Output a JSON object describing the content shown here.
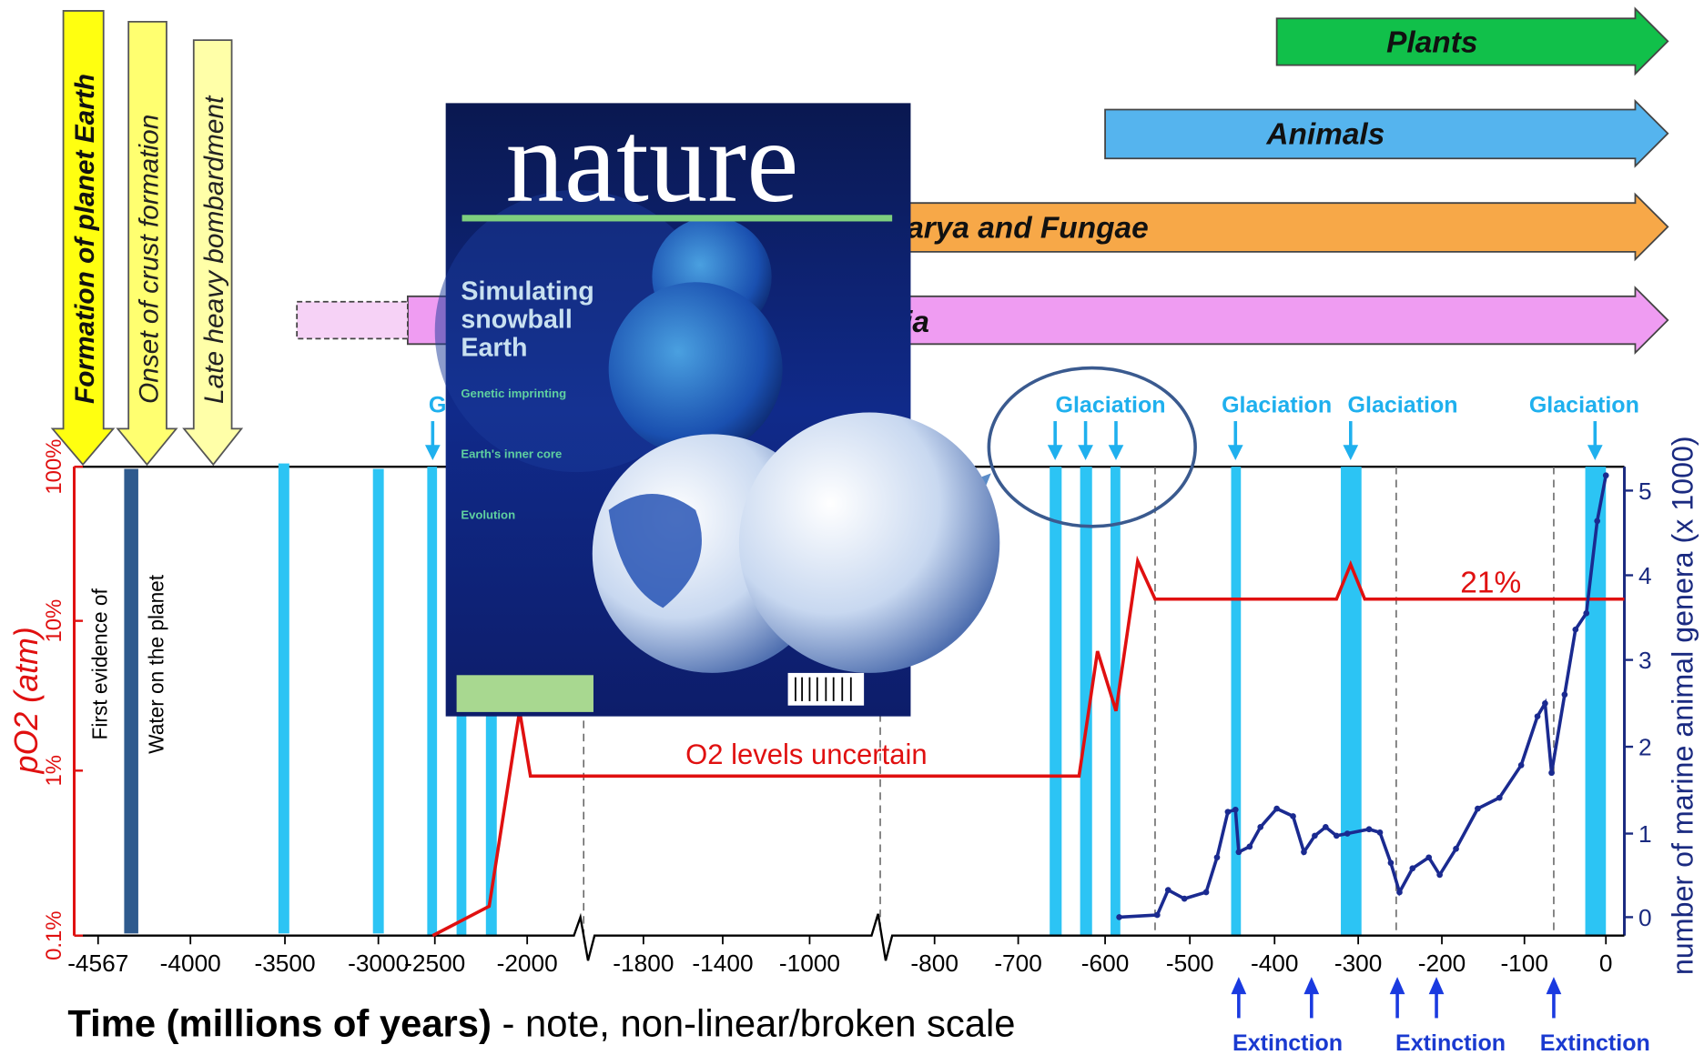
{
  "arrows": {
    "vertical": [
      "Formation of planet Earth",
      "Onset of crust formation",
      "Late heavy bombardment"
    ],
    "horizontal": [
      "Plants",
      "Animals",
      "Eukarya and Fungae",
      "Bacteria"
    ]
  },
  "glaciation_labels": [
    "Glaciation",
    "Glaciation",
    "Glaciation",
    "Glaciation",
    "Glaciation"
  ],
  "left_axis": {
    "label": "pO2 (atm)",
    "ticks": [
      "100%",
      "10%",
      "1%",
      "0.1%"
    ]
  },
  "right_axis": {
    "label": "number of marine animal genera (x 1000)",
    "ticks": [
      0,
      1,
      2,
      3,
      4,
      5
    ]
  },
  "x_axis": {
    "ticks": [
      -4567,
      -4000,
      -3500,
      -3000,
      -2500,
      -2000,
      -1800,
      -1400,
      -1000,
      -800,
      -700,
      -600,
      -500,
      -400,
      -300,
      -200,
      -100,
      0
    ],
    "title": "Time (millions of years)",
    "note": " - note, non-linear/broken scale"
  },
  "annotations": {
    "water": [
      "First evidence of",
      "Water on the planet"
    ],
    "o2": "O2 levels uncertain",
    "modern": "21%"
  },
  "extinction_labels": [
    "Extinction",
    "Extinction",
    "Extinction"
  ],
  "cover": {
    "masthead": "nature",
    "headline": [
      "Simulating",
      "snowball",
      "Earth"
    ],
    "items": [
      "Genetic imprinting",
      "Earth's inner core",
      "Evolution"
    ]
  }
}
